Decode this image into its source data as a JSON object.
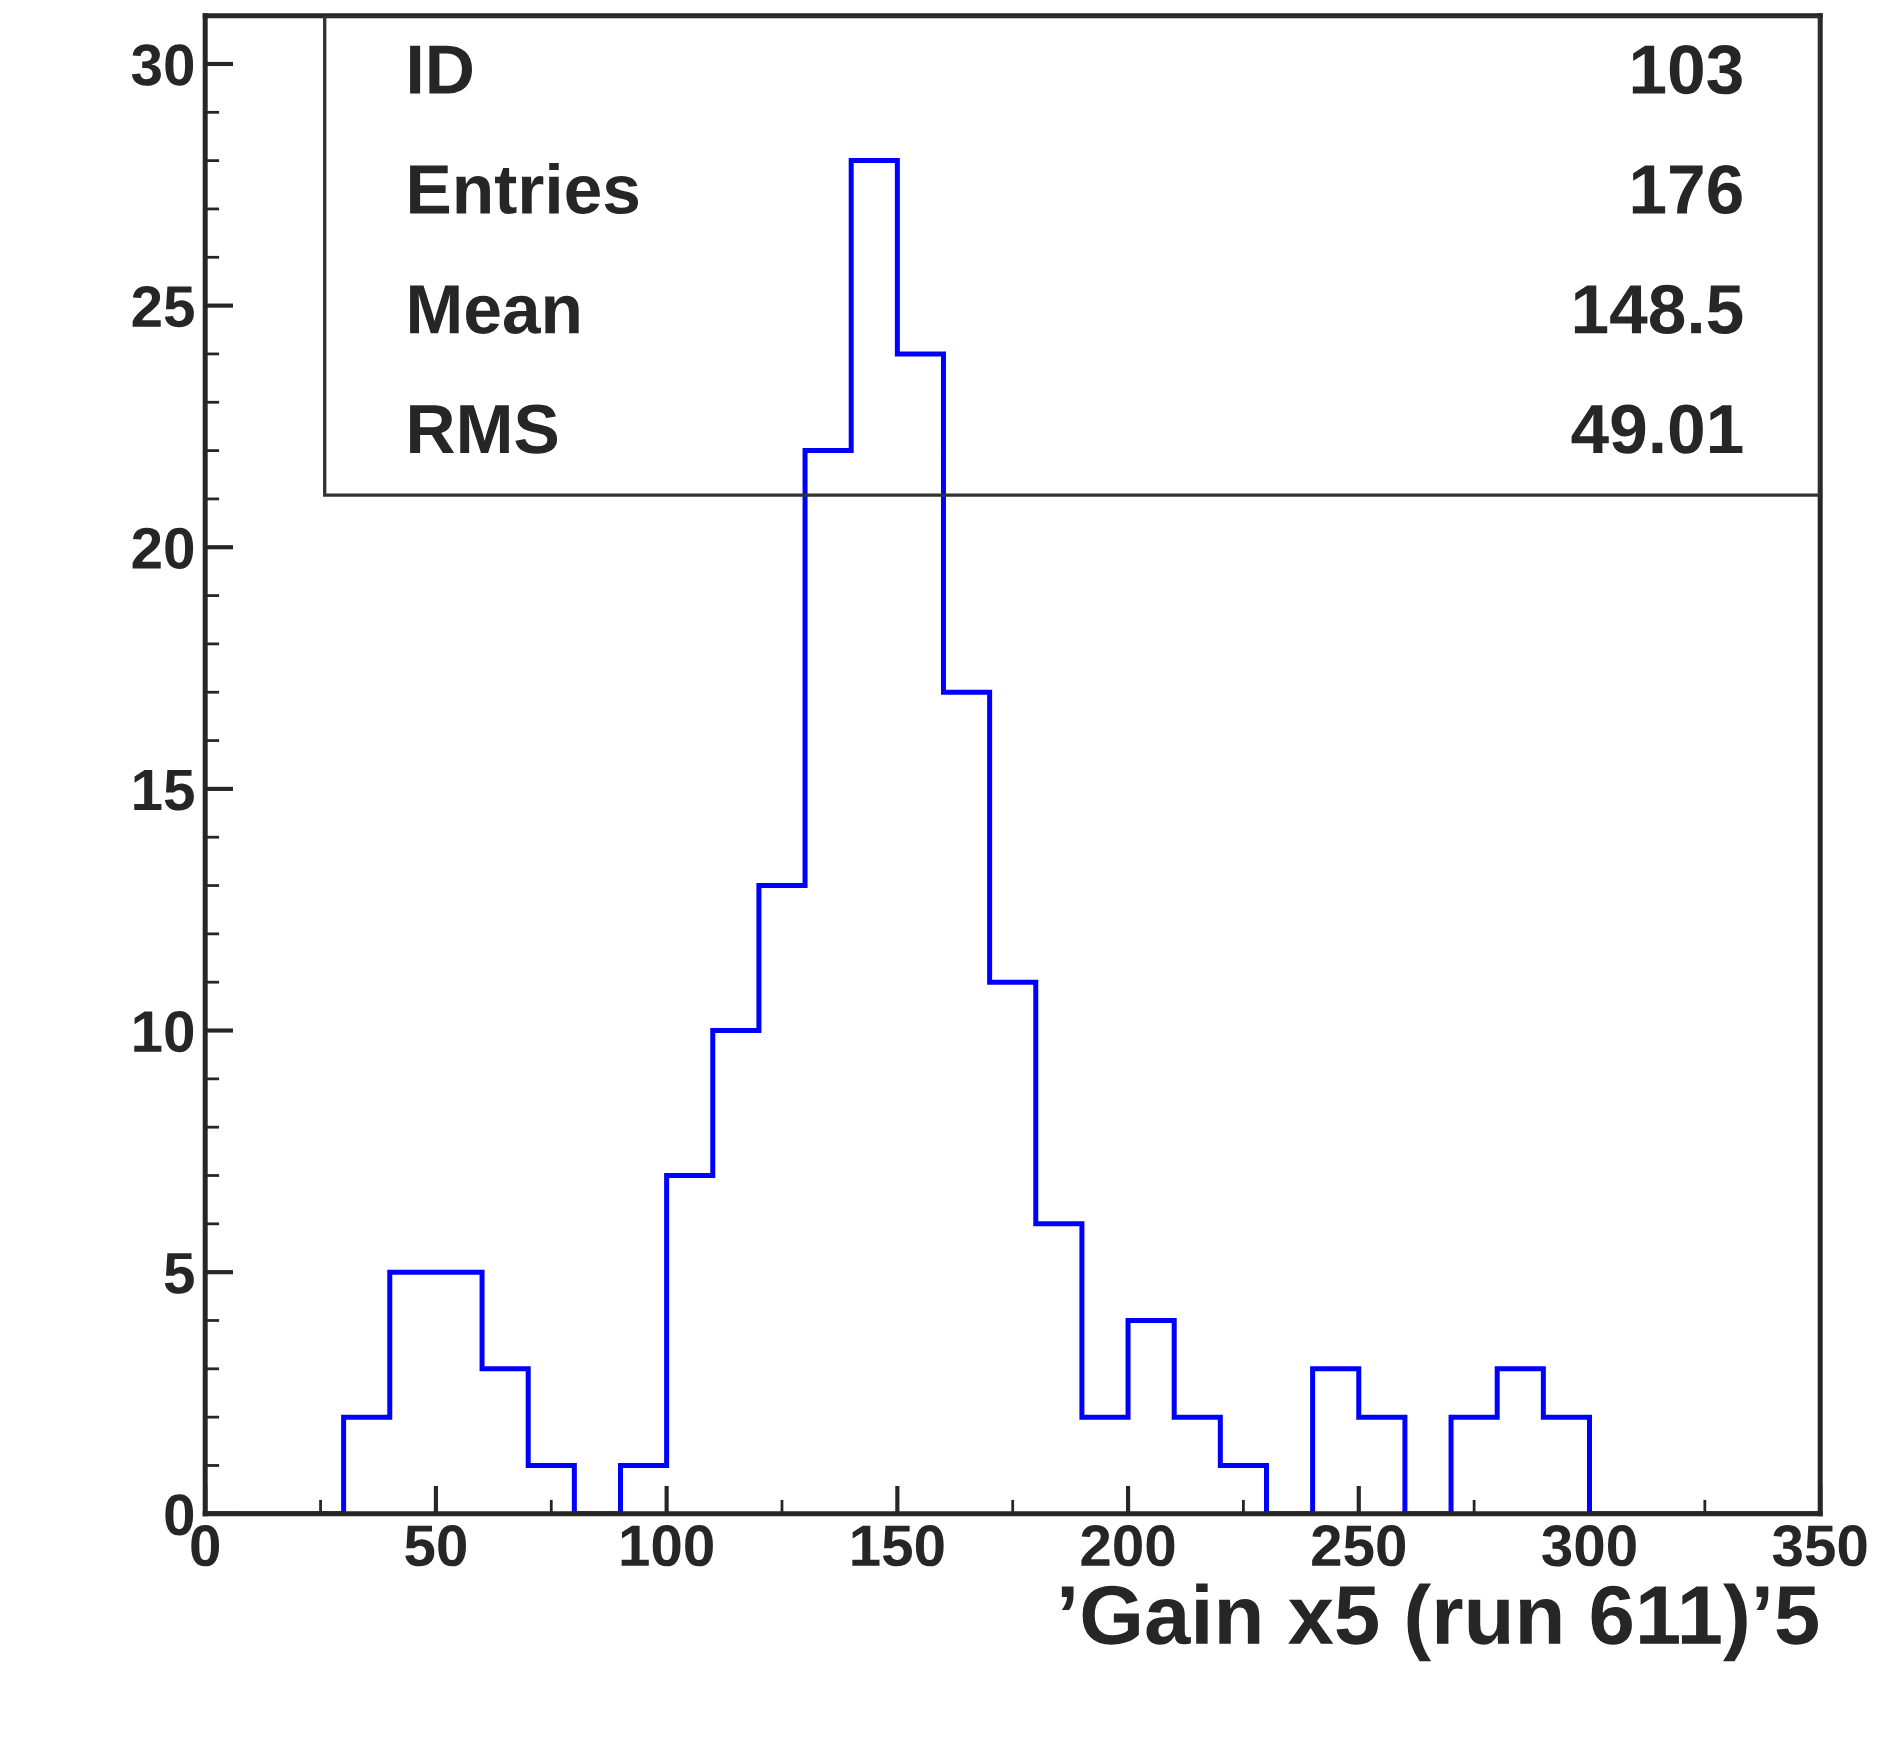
{
  "chart_data": {
    "type": "histogram",
    "xlabel": "’Gain x5 (run 611)’5",
    "bins": [
      0,
      10,
      20,
      30,
      40,
      50,
      60,
      70,
      80,
      90,
      100,
      110,
      120,
      130,
      140,
      150,
      160,
      170,
      180,
      190,
      200,
      210,
      220,
      230,
      240,
      250,
      260,
      270,
      280,
      290,
      300,
      310,
      320,
      330,
      340,
      350
    ],
    "values": [
      0,
      0,
      0,
      2,
      5,
      5,
      3,
      1,
      0,
      1,
      7,
      10,
      13,
      22,
      28,
      24,
      17,
      11,
      6,
      2,
      4,
      2,
      1,
      0,
      3,
      2,
      0,
      2,
      3,
      2,
      0,
      0,
      0,
      0,
      0
    ],
    "color": "#0000ff",
    "xlim": [
      0,
      350
    ],
    "xticks": [
      0,
      50,
      100,
      150,
      200,
      250,
      300,
      350
    ],
    "ylim": [
      0,
      31
    ],
    "yticks": [
      0,
      5,
      10,
      15,
      20,
      25,
      30
    ],
    "annotations": [
      "ID",
      "103",
      "Entries",
      "176",
      "Mean",
      "148.5",
      "RMS",
      "49.01"
    ],
    "grid": false
  }
}
